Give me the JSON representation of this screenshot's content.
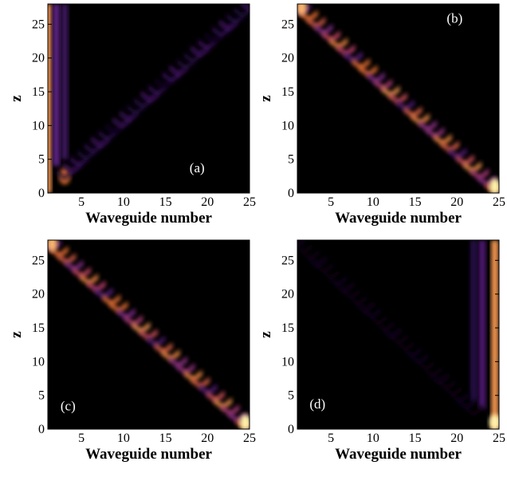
{
  "chart_data": [
    {
      "type": "heatmap",
      "panel_label": "(a)",
      "xlabel": "Waveguide number",
      "ylabel": "z",
      "xlim": [
        1,
        25
      ],
      "ylim": [
        0,
        28
      ],
      "xticks": [
        5,
        10,
        15,
        20,
        25
      ],
      "yticks": [
        0,
        5,
        10,
        15,
        20,
        25
      ],
      "features": [
        {
          "kind": "column",
          "x": 1,
          "z_start": 0,
          "z_end": 28,
          "intensity": 0.85
        },
        {
          "kind": "column",
          "x": 2,
          "z_start": 4,
          "z_end": 28,
          "intensity": 0.35
        },
        {
          "kind": "column",
          "x": 3,
          "z_start": 5,
          "z_end": 28,
          "intensity": 0.25
        },
        {
          "kind": "spot",
          "x": 3,
          "z": 2.5,
          "intensity": 0.8
        },
        {
          "kind": "diagonal",
          "x_start": 3,
          "z_start": 3,
          "x_end": 25,
          "z_end": 28,
          "intensity": 0.25
        }
      ]
    },
    {
      "type": "heatmap",
      "panel_label": "(b)",
      "xlabel": "Waveguide number",
      "ylabel": "z",
      "xlim": [
        1,
        25
      ],
      "ylim": [
        0,
        28
      ],
      "xticks": [
        5,
        10,
        15,
        20,
        25
      ],
      "yticks": [
        0,
        5,
        10,
        15,
        20,
        25
      ],
      "features": [
        {
          "kind": "diagonal",
          "x_start": 1.5,
          "z_start": 27.5,
          "x_end": 24.5,
          "z_end": 1,
          "intensity": 0.75
        },
        {
          "kind": "spot",
          "x": 1.5,
          "z": 27.5,
          "intensity": 0.9
        },
        {
          "kind": "spot",
          "x": 24.5,
          "z": 1,
          "intensity": 1.0
        }
      ]
    },
    {
      "type": "heatmap",
      "panel_label": "(c)",
      "xlabel": "Waveguide number",
      "ylabel": "z",
      "xlim": [
        1,
        25
      ],
      "ylim": [
        0,
        28
      ],
      "xticks": [
        5,
        10,
        15,
        20,
        25
      ],
      "yticks": [
        0,
        5,
        10,
        15,
        20,
        25
      ],
      "features": [
        {
          "kind": "diagonal",
          "x_start": 1.5,
          "z_start": 27.5,
          "x_end": 24.5,
          "z_end": 1,
          "intensity": 0.75
        },
        {
          "kind": "spot",
          "x": 1.5,
          "z": 27.5,
          "intensity": 0.9
        },
        {
          "kind": "spot",
          "x": 24.5,
          "z": 1,
          "intensity": 1.0
        }
      ]
    },
    {
      "type": "heatmap",
      "panel_label": "(d)",
      "xlabel": "Waveguide number",
      "ylabel": "z",
      "xlim": [
        1,
        25
      ],
      "ylim": [
        0,
        28
      ],
      "xticks": [
        5,
        10,
        15,
        20,
        25
      ],
      "yticks": [
        0,
        5,
        10,
        15,
        20,
        25
      ],
      "features": [
        {
          "kind": "column",
          "x": 24.5,
          "z_start": 0,
          "z_end": 28,
          "intensity": 0.85
        },
        {
          "kind": "column",
          "x": 23,
          "z_start": 3,
          "z_end": 28,
          "intensity": 0.3
        },
        {
          "kind": "column",
          "x": 22,
          "z_start": 4,
          "z_end": 28,
          "intensity": 0.2
        },
        {
          "kind": "spot",
          "x": 24.5,
          "z": 1,
          "intensity": 1.0
        },
        {
          "kind": "diagonal",
          "x_start": 22,
          "z_start": 3,
          "x_end": 1,
          "z_end": 28,
          "intensity": 0.08
        }
      ]
    }
  ]
}
